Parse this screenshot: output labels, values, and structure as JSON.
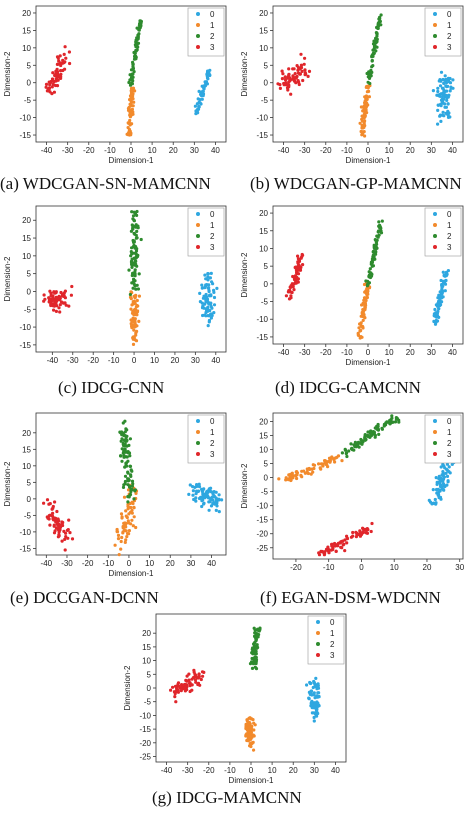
{
  "colors": {
    "0": "#2ea7e0",
    "1": "#f28a2c",
    "2": "#2e8b2e",
    "3": "#e0262b"
  },
  "chart_data": [
    {
      "type": "scatter",
      "caption": "(a) WDCGAN-SN-MAMCNN",
      "xlabel": "Dimension-1",
      "ylabel": "Dimension-2",
      "xlim": [
        -45,
        45
      ],
      "ylim": [
        -17,
        22
      ],
      "xticks": [
        -40,
        -30,
        -20,
        -10,
        0,
        10,
        20,
        30,
        40
      ],
      "yticks": [
        -15,
        -10,
        -5,
        0,
        5,
        10,
        15,
        20
      ],
      "legend": [
        "0",
        "1",
        "2",
        "3"
      ],
      "legend_position": "top-right",
      "clusters": [
        {
          "name": "0",
          "line": [
            [
              31,
              -9
            ],
            [
              37,
              3.5
            ]
          ],
          "spread": 0.5,
          "n": 60
        },
        {
          "name": "1",
          "line": [
            [
              -1,
              -15
            ],
            [
              1,
              -0.5
            ]
          ],
          "spread": 0.55,
          "n": 70
        },
        {
          "name": "2",
          "line": [
            [
              0,
              0
            ],
            [
              4.5,
              17.5
            ]
          ],
          "spread": 0.5,
          "n": 70
        },
        {
          "name": "3",
          "line": [
            [
              -39,
              -2.5
            ],
            [
              -30,
              9
            ]
          ],
          "spread": 1.1,
          "n": 60
        }
      ]
    },
    {
      "type": "scatter",
      "caption": "(b) WDCGAN-GP-MAMCNN",
      "xlabel": "Dimension-1",
      "ylabel": "Dimension-2",
      "xlim": [
        -45,
        45
      ],
      "ylim": [
        -17,
        22
      ],
      "xticks": [
        -40,
        -30,
        -20,
        -10,
        0,
        10,
        20,
        30,
        40
      ],
      "yticks": [
        -15,
        -10,
        -5,
        0,
        5,
        10,
        15,
        20
      ],
      "legend": [
        "0",
        "1",
        "2",
        "3"
      ],
      "legend_position": "top-right",
      "clusters": [
        {
          "name": "0",
          "line": [
            [
              36,
              -10
            ],
            [
              36,
              1
            ]
          ],
          "spread": 1.8,
          "n": 80
        },
        {
          "name": "1",
          "line": [
            [
              -3,
              -15.5
            ],
            [
              0,
              -0.5
            ]
          ],
          "spread": 0.5,
          "n": 70
        },
        {
          "name": "2",
          "line": [
            [
              0,
              0
            ],
            [
              6,
              19.5
            ]
          ],
          "spread": 0.5,
          "n": 70
        },
        {
          "name": "3",
          "line": [
            [
              -40,
              0
            ],
            [
              -30,
              4
            ]
          ],
          "spread": 1.6,
          "n": 70
        }
      ]
    },
    {
      "type": "scatter",
      "caption": "(c) IDCG-CNN",
      "xlabel": "",
      "ylabel": "Dimension-2",
      "xlim": [
        -48,
        45
      ],
      "ylim": [
        -17,
        24
      ],
      "xticks": [
        -40,
        -30,
        -20,
        -10,
        0,
        10,
        20,
        30,
        40
      ],
      "yticks": [
        -15,
        -10,
        -5,
        0,
        5,
        10,
        15,
        20
      ],
      "legend": [
        "0",
        "1",
        "2",
        "3"
      ],
      "legend_position": "top-right",
      "clusters": [
        {
          "name": "0",
          "line": [
            [
              36,
              -7
            ],
            [
              36,
              4.5
            ]
          ],
          "spread": 1.6,
          "n": 80
        },
        {
          "name": "1",
          "line": [
            [
              0,
              -14
            ],
            [
              0,
              -0.5
            ]
          ],
          "spread": 1.0,
          "n": 80
        },
        {
          "name": "2",
          "line": [
            [
              0,
              1
            ],
            [
              0,
              22
            ]
          ],
          "spread": 1.1,
          "n": 90
        },
        {
          "name": "3",
          "line": [
            [
              -42,
              -2.5
            ],
            [
              -33,
              -2.5
            ]
          ],
          "spread": 1.6,
          "n": 70
        }
      ]
    },
    {
      "type": "scatter",
      "caption": "(d) IDCG-CAMCNN",
      "xlabel": "Dimension-1",
      "ylabel": "Dimension-2",
      "xlim": [
        -45,
        45
      ],
      "ylim": [
        -17,
        22
      ],
      "xticks": [
        -40,
        -30,
        -20,
        -10,
        0,
        10,
        20,
        30,
        40
      ],
      "yticks": [
        -15,
        -10,
        -5,
        0,
        5,
        10,
        15,
        20
      ],
      "legend": [
        "0",
        "1",
        "2",
        "3"
      ],
      "legend_position": "top-right",
      "clusters": [
        {
          "name": "0",
          "line": [
            [
              32,
              -11
            ],
            [
              37,
              3.5
            ]
          ],
          "spread": 0.7,
          "n": 70
        },
        {
          "name": "1",
          "line": [
            [
              -4,
              -15
            ],
            [
              0,
              0
            ]
          ],
          "spread": 0.6,
          "n": 70
        },
        {
          "name": "2",
          "line": [
            [
              0,
              0
            ],
            [
              6,
              17.5
            ]
          ],
          "spread": 0.5,
          "n": 70
        },
        {
          "name": "3",
          "line": [
            [
              -37,
              -3.5
            ],
            [
              -31,
              8.5
            ]
          ],
          "spread": 1.0,
          "n": 60
        }
      ]
    },
    {
      "type": "scatter",
      "caption": "(e) DCCGAN-DCNN",
      "xlabel": "Dimension-1",
      "ylabel": "Dimension-2",
      "xlim": [
        -45,
        47
      ],
      "ylim": [
        -17,
        26
      ],
      "xticks": [
        -40,
        -30,
        -20,
        -10,
        0,
        10,
        20,
        30,
        40
      ],
      "yticks": [
        -15,
        -10,
        -5,
        0,
        5,
        10,
        15,
        20
      ],
      "legend": [
        "0",
        "1",
        "2",
        "3"
      ],
      "legend_position": "top-right",
      "clusters": [
        {
          "name": "0",
          "line": [
            [
              32,
              3
            ],
            [
              44,
              -1
            ]
          ],
          "spread": 1.5,
          "n": 80
        },
        {
          "name": "1",
          "line": [
            [
              -4,
              -14
            ],
            [
              2,
              2
            ]
          ],
          "spread": 1.5,
          "n": 70
        },
        {
          "name": "2",
          "line": [
            [
              -3,
              23
            ],
            [
              1,
              0
            ]
          ],
          "spread": 1.2,
          "n": 90
        },
        {
          "name": "3",
          "line": [
            [
              -40,
              -2
            ],
            [
              -31,
              -12
            ]
          ],
          "spread": 1.6,
          "n": 70
        }
      ]
    },
    {
      "type": "scatter",
      "caption": "(f) EGAN-DSM-WDCNN",
      "xlabel": "",
      "ylabel": "Dimension-2",
      "xlim": [
        -27,
        31
      ],
      "ylim": [
        -29,
        23
      ],
      "xticks": [
        -20,
        -10,
        0,
        10,
        20,
        30
      ],
      "yticks": [
        -25,
        -20,
        -15,
        -10,
        -5,
        0,
        5,
        10,
        15,
        20
      ],
      "legend": [
        "0",
        "1",
        "2",
        "3"
      ],
      "legend_position": "top-right",
      "clusters": [
        {
          "name": "0",
          "line": [
            [
              22,
              -10
            ],
            [
              28,
              9
            ]
          ],
          "spread": 0.9,
          "n": 80
        },
        {
          "name": "1",
          "line": [
            [
              -24,
              -1
            ],
            [
              -7,
              7
            ]
          ],
          "spread": 0.7,
          "n": 70
        },
        {
          "name": "2",
          "line": [
            [
              -6,
              8
            ],
            [
              10,
              21
            ]
          ],
          "spread": 0.8,
          "n": 90
        },
        {
          "name": "3",
          "line": [
            [
              -13,
              -27.5
            ],
            [
              3,
              -18
            ]
          ],
          "spread": 0.7,
          "n": 80
        }
      ]
    },
    {
      "type": "scatter",
      "caption": "(g) IDCG-MAMCNN",
      "xlabel": "Dimension-1",
      "ylabel": "Dimension-2",
      "xlim": [
        -45,
        45
      ],
      "ylim": [
        -27,
        27
      ],
      "xticks": [
        -40,
        -30,
        -20,
        -10,
        0,
        10,
        20,
        30,
        40
      ],
      "yticks": [
        -25,
        -20,
        -15,
        -10,
        -5,
        0,
        5,
        10,
        15,
        20
      ],
      "legend": [
        "0",
        "1",
        "2",
        "3"
      ],
      "legend_position": "top-right",
      "clusters": [
        {
          "name": "0",
          "line": [
            [
              30,
              -10
            ],
            [
              30,
              3
            ]
          ],
          "spread": 1.3,
          "n": 70
        },
        {
          "name": "1",
          "line": [
            [
              -1,
              -21
            ],
            [
              0,
              -12
            ]
          ],
          "spread": 1.1,
          "n": 70
        },
        {
          "name": "2",
          "line": [
            [
              1,
              7
            ],
            [
              3,
              22
            ]
          ],
          "spread": 0.8,
          "n": 70
        },
        {
          "name": "3",
          "line": [
            [
              -36,
              -1
            ],
            [
              -24,
              4
            ]
          ],
          "spread": 1.3,
          "n": 70
        }
      ]
    }
  ]
}
